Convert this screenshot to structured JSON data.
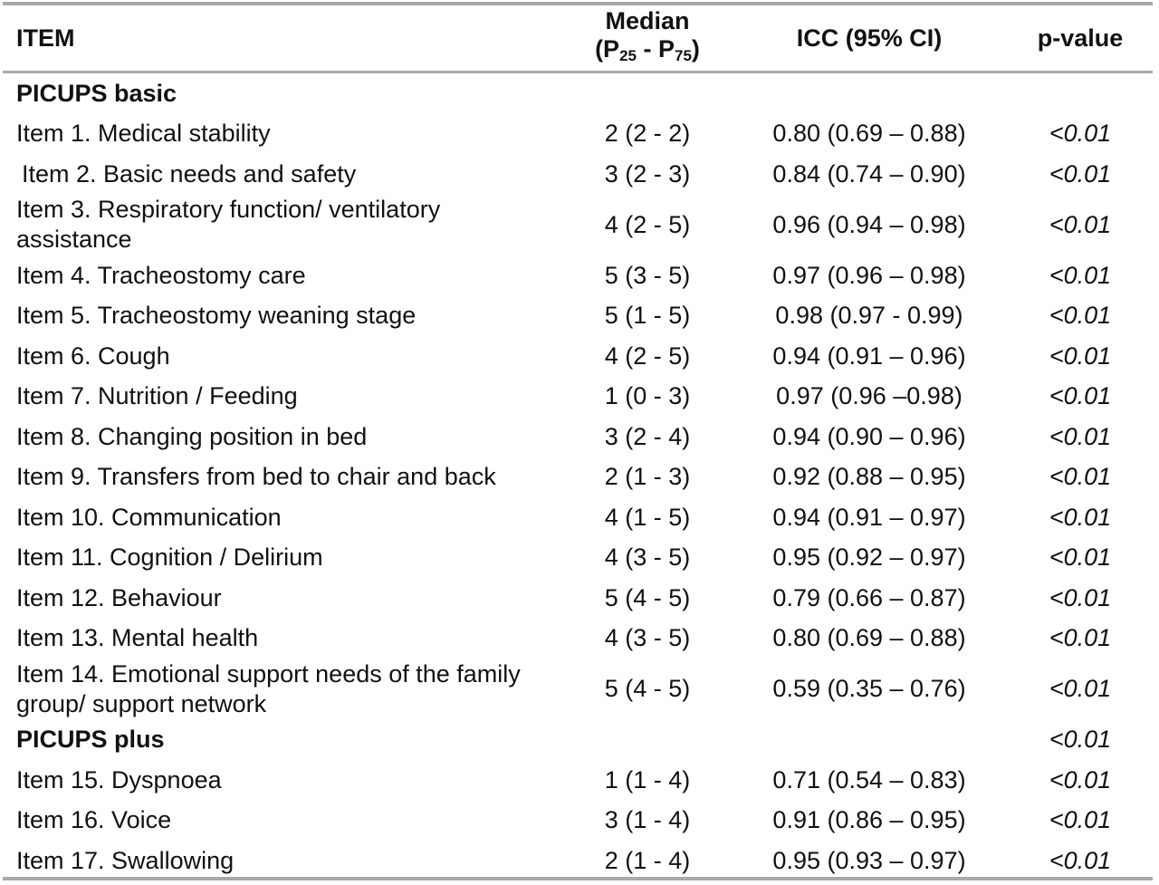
{
  "table": {
    "headers": {
      "item": "ITEM",
      "median_line1": "Median",
      "median_p25_prefix": "(P",
      "median_p25_sub": "25",
      "median_sep": " - P",
      "median_p75_sub": "75",
      "median_close": ")",
      "icc": "ICC (95% CI)",
      "pvalue": "p-value"
    },
    "rows": [
      {
        "item": "PICUPS basic",
        "median": "",
        "icc": "",
        "p": ""
      },
      {
        "item": "Item 1. Medical stability",
        "median": "2 (2 - 2)",
        "icc": "0.80 (0.69 – 0.88)",
        "p": "<0.01"
      },
      {
        "item": "Item 2. Basic needs and safety",
        "median": "3 (2 - 3)",
        "icc": "0.84 (0.74 – 0.90)",
        "p": "<0.01"
      },
      {
        "item": "Item 3. Respiratory function/ ventilatory assistance",
        "median": "4 (2 - 5)",
        "icc": "0.96 (0.94 – 0.98)",
        "p": "<0.01"
      },
      {
        "item": "Item 4. Tracheostomy care",
        "median": "5 (3 - 5)",
        "icc": "0.97 (0.96 – 0.98)",
        "p": "<0.01"
      },
      {
        "item": "Item 5. Tracheostomy weaning stage",
        "median": "5 (1 - 5)",
        "icc": "0.98 (0.97 - 0.99)",
        "p": "<0.01"
      },
      {
        "item": "Item 6. Cough",
        "median": "4 (2 - 5)",
        "icc": "0.94 (0.91 – 0.96)",
        "p": "<0.01"
      },
      {
        "item": "Item 7. Nutrition / Feeding",
        "median": "1 (0 - 3)",
        "icc": "0.97 (0.96 –0.98)",
        "p": "<0.01"
      },
      {
        "item": "Item 8. Changing position in bed",
        "median": "3 (2 - 4)",
        "icc": "0.94 (0.90 – 0.96)",
        "p": "<0.01"
      },
      {
        "item": "Item 9. Transfers from bed to chair and back",
        "median": "2 (1 - 3)",
        "icc": "0.92 (0.88 – 0.95)",
        "p": "<0.01"
      },
      {
        "item": "Item 10. Communication",
        "median": "4 (1 - 5)",
        "icc": "0.94 (0.91 – 0.97)",
        "p": "<0.01"
      },
      {
        "item": "Item 11. Cognition / Delirium",
        "median": "4 (3 - 5)",
        "icc": "0.95 (0.92 – 0.97)",
        "p": "<0.01"
      },
      {
        "item": "Item 12. Behaviour",
        "median": "5 (4 - 5)",
        "icc": "0.79 (0.66 – 0.87)",
        "p": "<0.01"
      },
      {
        "item": "Item 13. Mental health",
        "median": "4 (3 - 5)",
        "icc": "0.80 (0.69 – 0.88)",
        "p": "<0.01"
      },
      {
        "item": "Item 14. Emotional support needs of the family group/ support network",
        "median": "5 (4 - 5)",
        "icc": "0.59 (0.35 – 0.76)",
        "p": "<0.01"
      },
      {
        "item": "PICUPS plus",
        "median": "",
        "icc": "",
        "p": "<0.01"
      },
      {
        "item": "Item 15. Dyspnoea",
        "median": "1 (1 - 4)",
        "icc": "0.71 (0.54 – 0.83)",
        "p": "<0.01"
      },
      {
        "item": "Item 16. Voice",
        "median": "3 (1 - 4)",
        "icc": "0.91 (0.86 – 0.95)",
        "p": "<0.01"
      },
      {
        "item": "Item 17. Swallowing",
        "median": "2 (1 - 4)",
        "icc": "0.95 (0.93 – 0.97)",
        "p": "<0.01"
      }
    ]
  },
  "colors": {
    "rule": "#a9a9a9",
    "text": "#111111"
  }
}
